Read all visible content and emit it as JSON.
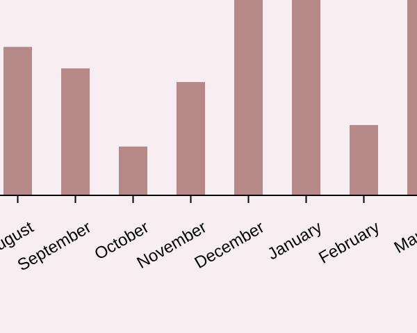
{
  "chart_data": {
    "type": "bar",
    "categories": [
      "August",
      "September",
      "October",
      "November",
      "December",
      "January",
      "February",
      "March"
    ],
    "values": [
      76,
      65,
      25,
      58,
      100,
      100,
      36,
      100
    ],
    "ylim": [
      0,
      100
    ],
    "grid": false,
    "colors": {
      "bar": "#b78888",
      "axis": "#000000",
      "background": "#f6eef1"
    }
  }
}
